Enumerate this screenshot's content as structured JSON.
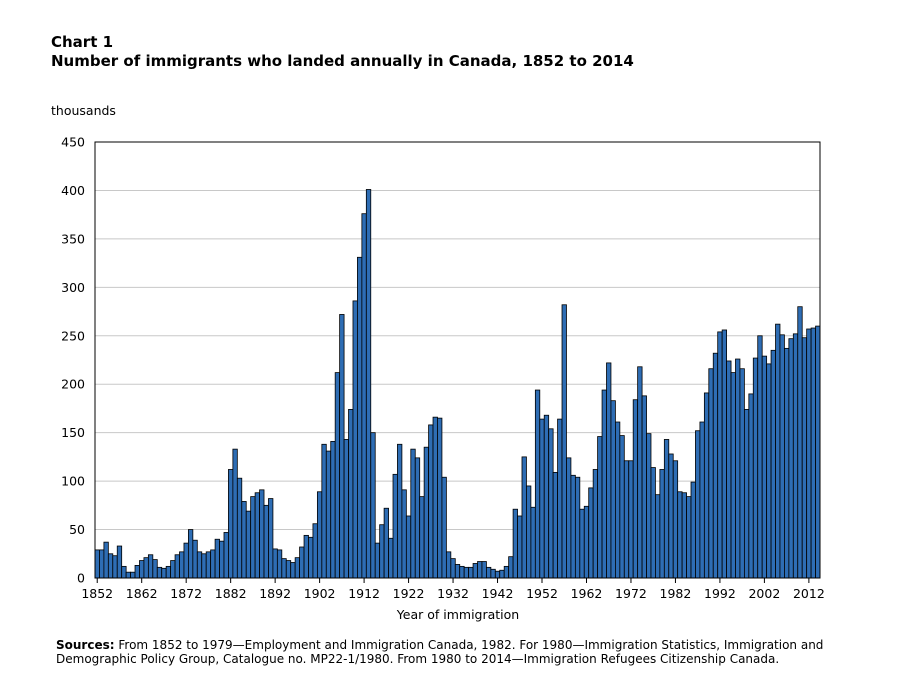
{
  "header": {
    "chart_number": "Chart 1",
    "title": "Number of immigrants who landed annually in Canada, 1852 to 2014"
  },
  "footer": {
    "sources_label": "Sources:",
    "sources_text": "From 1852 to 1979—Employment and Immigration Canada, 1982. For 1980—Immigration Statistics, Immigration and Demographic Policy Group, Catalogue no. MP22-1/1980. From 1980 to 2014—Immigration Refugees Citizenship Canada."
  },
  "colors": {
    "bar_fill": "#2e6db4",
    "bar_stroke": "#000000",
    "grid": "#c8c8c8"
  },
  "chart_data": {
    "type": "bar",
    "title": "Number of immigrants who landed annually in Canada, 1852 to 2014",
    "xlabel": "Year of immigration",
    "ylabel": "thousands",
    "ylim": [
      0,
      450
    ],
    "yticks": [
      0,
      50,
      100,
      150,
      200,
      250,
      300,
      350,
      400,
      450
    ],
    "xticks": [
      "1852",
      "1862",
      "1872",
      "1882",
      "1892",
      "1902",
      "1912",
      "1922",
      "1932",
      "1942",
      "1952",
      "1962",
      "1972",
      "1982",
      "1992",
      "2002",
      "2012"
    ],
    "grid": true,
    "x_start": 1852,
    "x_end": 2014,
    "values": [
      29,
      29,
      37,
      25,
      23,
      33,
      12,
      6,
      6,
      13,
      18,
      21,
      24,
      19,
      11,
      10,
      12,
      18,
      24,
      27,
      36,
      50,
      39,
      27,
      25,
      27,
      29,
      40,
      38,
      47,
      112,
      133,
      103,
      79,
      69,
      84,
      88,
      91,
      75,
      82,
      30,
      29,
      20,
      18,
      16,
      21,
      32,
      44,
      42,
      56,
      89,
      138,
      131,
      141,
      212,
      272,
      143,
      174,
      286,
      331,
      376,
      401,
      150,
      36,
      55,
      72,
      41,
      107,
      138,
      91,
      64,
      133,
      124,
      84,
      135,
      158,
      166,
      165,
      104,
      27,
      20,
      14,
      12,
      11,
      11,
      15,
      17,
      17,
      11,
      9,
      7,
      8,
      12,
      22,
      71,
      64,
      125,
      95,
      73,
      194,
      164,
      168,
      154,
      109,
      164,
      282,
      124,
      106,
      104,
      71,
      74,
      93,
      112,
      146,
      194,
      222,
      183,
      161,
      147,
      121,
      121,
      184,
      218,
      188,
      149,
      114,
      86,
      112,
      143,
      128,
      121,
      89,
      88,
      84,
      99,
      152,
      161,
      191,
      216,
      232,
      254,
      256,
      224,
      212,
      226,
      216,
      174,
      190,
      227,
      250,
      229,
      221,
      235,
      262,
      251,
      237,
      247,
      252,
      280,
      248,
      257,
      258,
      260
    ]
  }
}
